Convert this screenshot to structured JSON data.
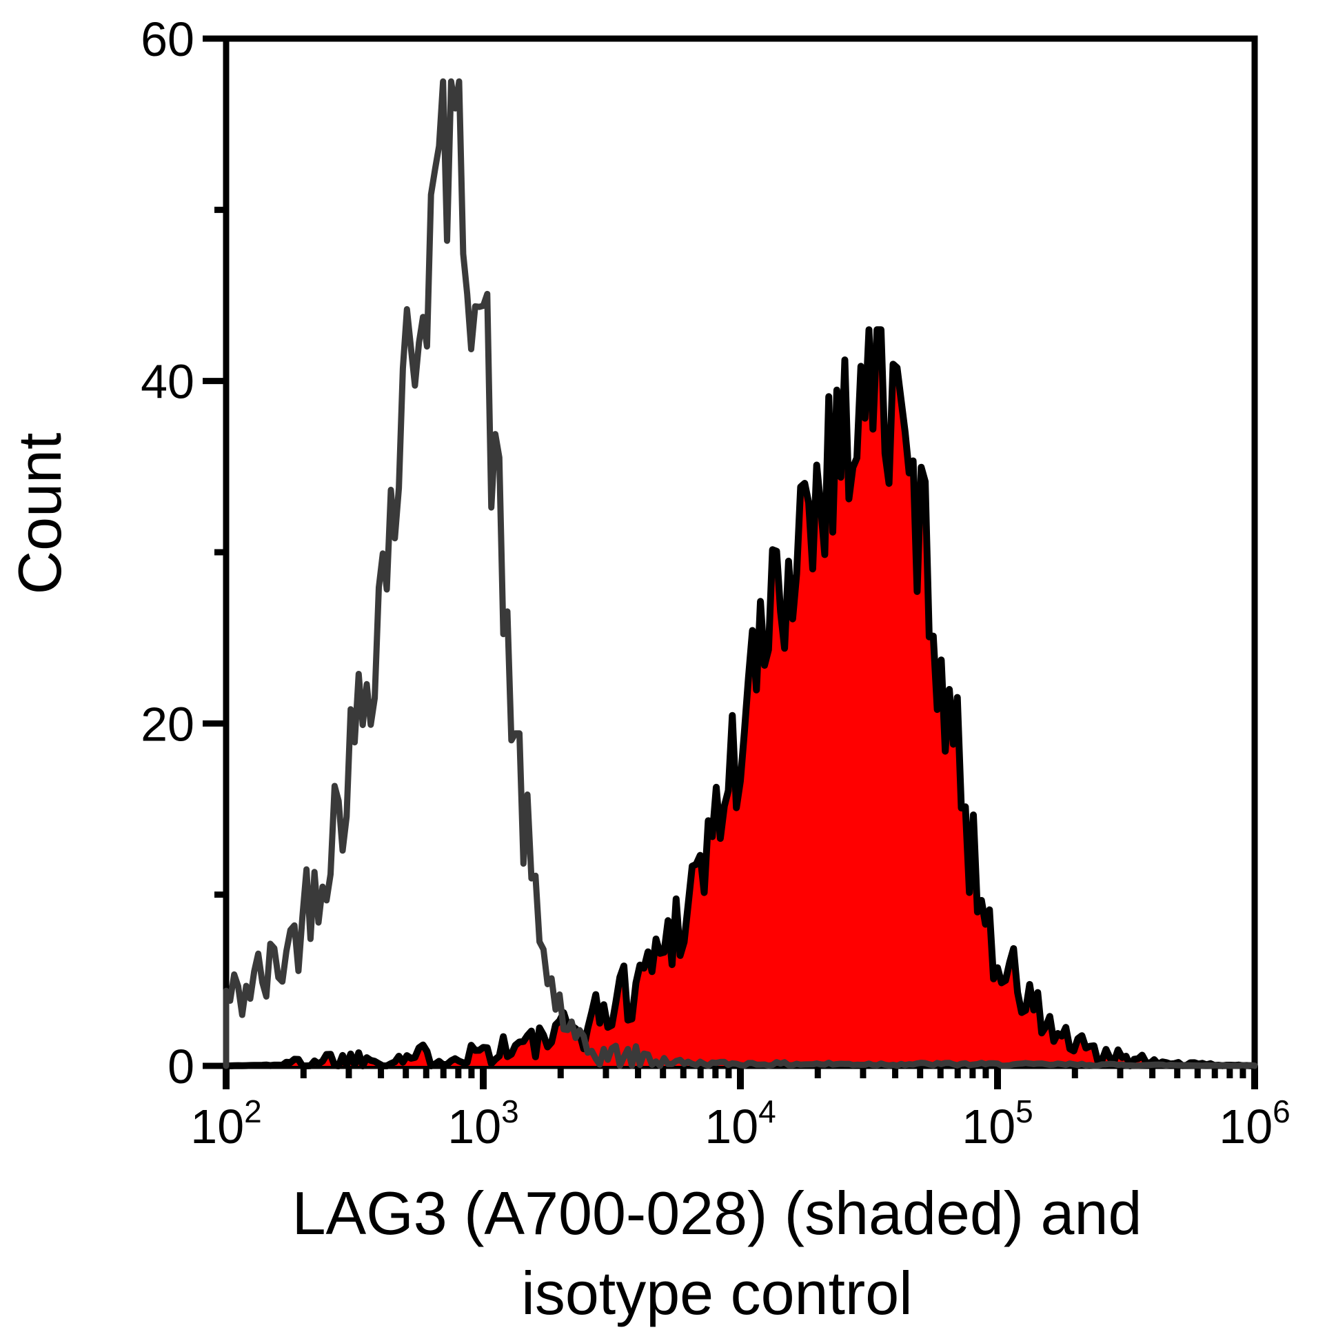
{
  "figure": {
    "background": "#ffffff",
    "frame_color": "#000000"
  },
  "chart_data": {
    "type": "histogram",
    "subtype": "flow-cytometry-overlay",
    "legend": "none",
    "grid": false,
    "x_axis": {
      "scale": "log10",
      "min": 100,
      "max": 1000000,
      "label_lines": [
        "LAG3 (A700-028) (shaded) and",
        "isotype control"
      ],
      "major_ticks": [
        {
          "value": 100,
          "mantissa": "10",
          "exponent": "2"
        },
        {
          "value": 1000,
          "mantissa": "10",
          "exponent": "3"
        },
        {
          "value": 10000,
          "mantissa": "10",
          "exponent": "4"
        },
        {
          "value": 100000,
          "mantissa": "10",
          "exponent": "5"
        },
        {
          "value": 1000000,
          "mantissa": "10",
          "exponent": "6"
        }
      ],
      "minor_tick_multiples": [
        2,
        3,
        4,
        5,
        6,
        7,
        8,
        9
      ]
    },
    "y_axis": {
      "label": "Count",
      "min": 0,
      "max": 60,
      "major_ticks": [
        0,
        20,
        40,
        60
      ],
      "minor_ticks": [
        10,
        30,
        50
      ]
    },
    "series": [
      {
        "name": "isotype control",
        "style": "open",
        "line_color": "#3a3a3a",
        "line_width": 9,
        "peak": {
          "x": 770,
          "count": 57
        },
        "envelope_log10_count": [
          [
            2.0,
            4
          ],
          [
            2.05,
            4
          ],
          [
            2.1,
            5
          ],
          [
            2.15,
            5
          ],
          [
            2.2,
            6
          ],
          [
            2.25,
            7
          ],
          [
            2.3,
            9
          ],
          [
            2.35,
            11
          ],
          [
            2.4,
            13
          ],
          [
            2.45,
            16
          ],
          [
            2.5,
            19
          ],
          [
            2.55,
            23
          ],
          [
            2.6,
            28
          ],
          [
            2.64,
            32
          ],
          [
            2.68,
            37
          ],
          [
            2.72,
            42
          ],
          [
            2.76,
            46
          ],
          [
            2.8,
            49
          ],
          [
            2.84,
            52
          ],
          [
            2.87,
            55
          ],
          [
            2.89,
            57
          ],
          [
            2.91,
            54
          ],
          [
            2.94,
            50
          ],
          [
            2.97,
            46
          ],
          [
            3.0,
            43
          ],
          [
            3.04,
            36
          ],
          [
            3.08,
            27
          ],
          [
            3.12,
            20
          ],
          [
            3.16,
            14
          ],
          [
            3.2,
            9
          ],
          [
            3.24,
            6
          ],
          [
            3.28,
            4
          ],
          [
            3.32,
            2.5
          ],
          [
            3.36,
            1.2
          ],
          [
            3.42,
            0.8
          ],
          [
            3.5,
            0.6
          ],
          [
            3.6,
            0.5
          ],
          [
            3.7,
            0.3
          ],
          [
            3.8,
            0.15
          ],
          [
            4.0,
            0.12
          ],
          [
            4.4,
            0.1
          ],
          [
            4.8,
            0.1
          ],
          [
            5.2,
            0.08
          ],
          [
            5.6,
            0.05
          ],
          [
            6.0,
            0.02
          ]
        ],
        "noise": {
          "seed": 42,
          "amplitude": 0.95,
          "max_count": 57.5
        }
      },
      {
        "name": "LAG3 (A700-028)",
        "style": "shaded",
        "fill_color": "#ff0000",
        "line_color": "#000000",
        "line_width": 10,
        "peak": {
          "x": 31000,
          "count": 42
        },
        "envelope_log10_count": [
          [
            2.0,
            0
          ],
          [
            2.2,
            0.05
          ],
          [
            2.3,
            0.3
          ],
          [
            2.4,
            0.4
          ],
          [
            2.5,
            0.4
          ],
          [
            2.6,
            0.4
          ],
          [
            2.7,
            0.5
          ],
          [
            2.8,
            0.6
          ],
          [
            2.9,
            0.7
          ],
          [
            3.0,
            0.9
          ],
          [
            3.1,
            1.1
          ],
          [
            3.2,
            1.3
          ],
          [
            3.3,
            1.8
          ],
          [
            3.4,
            2.5
          ],
          [
            3.5,
            3.5
          ],
          [
            3.6,
            5
          ],
          [
            3.7,
            7
          ],
          [
            3.8,
            10
          ],
          [
            3.9,
            14
          ],
          [
            4.0,
            19
          ],
          [
            4.08,
            24
          ],
          [
            4.16,
            28
          ],
          [
            4.24,
            32
          ],
          [
            4.32,
            35
          ],
          [
            4.4,
            37
          ],
          [
            4.46,
            39
          ],
          [
            4.5,
            40
          ],
          [
            4.56,
            39
          ],
          [
            4.62,
            37
          ],
          [
            4.68,
            33
          ],
          [
            4.74,
            28
          ],
          [
            4.8,
            22
          ],
          [
            4.86,
            16
          ],
          [
            4.92,
            11
          ],
          [
            4.98,
            7.5
          ],
          [
            5.04,
            5.5
          ],
          [
            5.1,
            4
          ],
          [
            5.16,
            3
          ],
          [
            5.22,
            2
          ],
          [
            5.28,
            1.3
          ],
          [
            5.34,
            0.8
          ],
          [
            5.42,
            0.5
          ],
          [
            5.52,
            0.3
          ],
          [
            5.65,
            0.15
          ],
          [
            5.8,
            0.08
          ],
          [
            6.0,
            0
          ]
        ],
        "noise": {
          "seed": 1337,
          "amplitude": 0.95,
          "max_count": 43
        }
      }
    ],
    "bins": 256
  }
}
